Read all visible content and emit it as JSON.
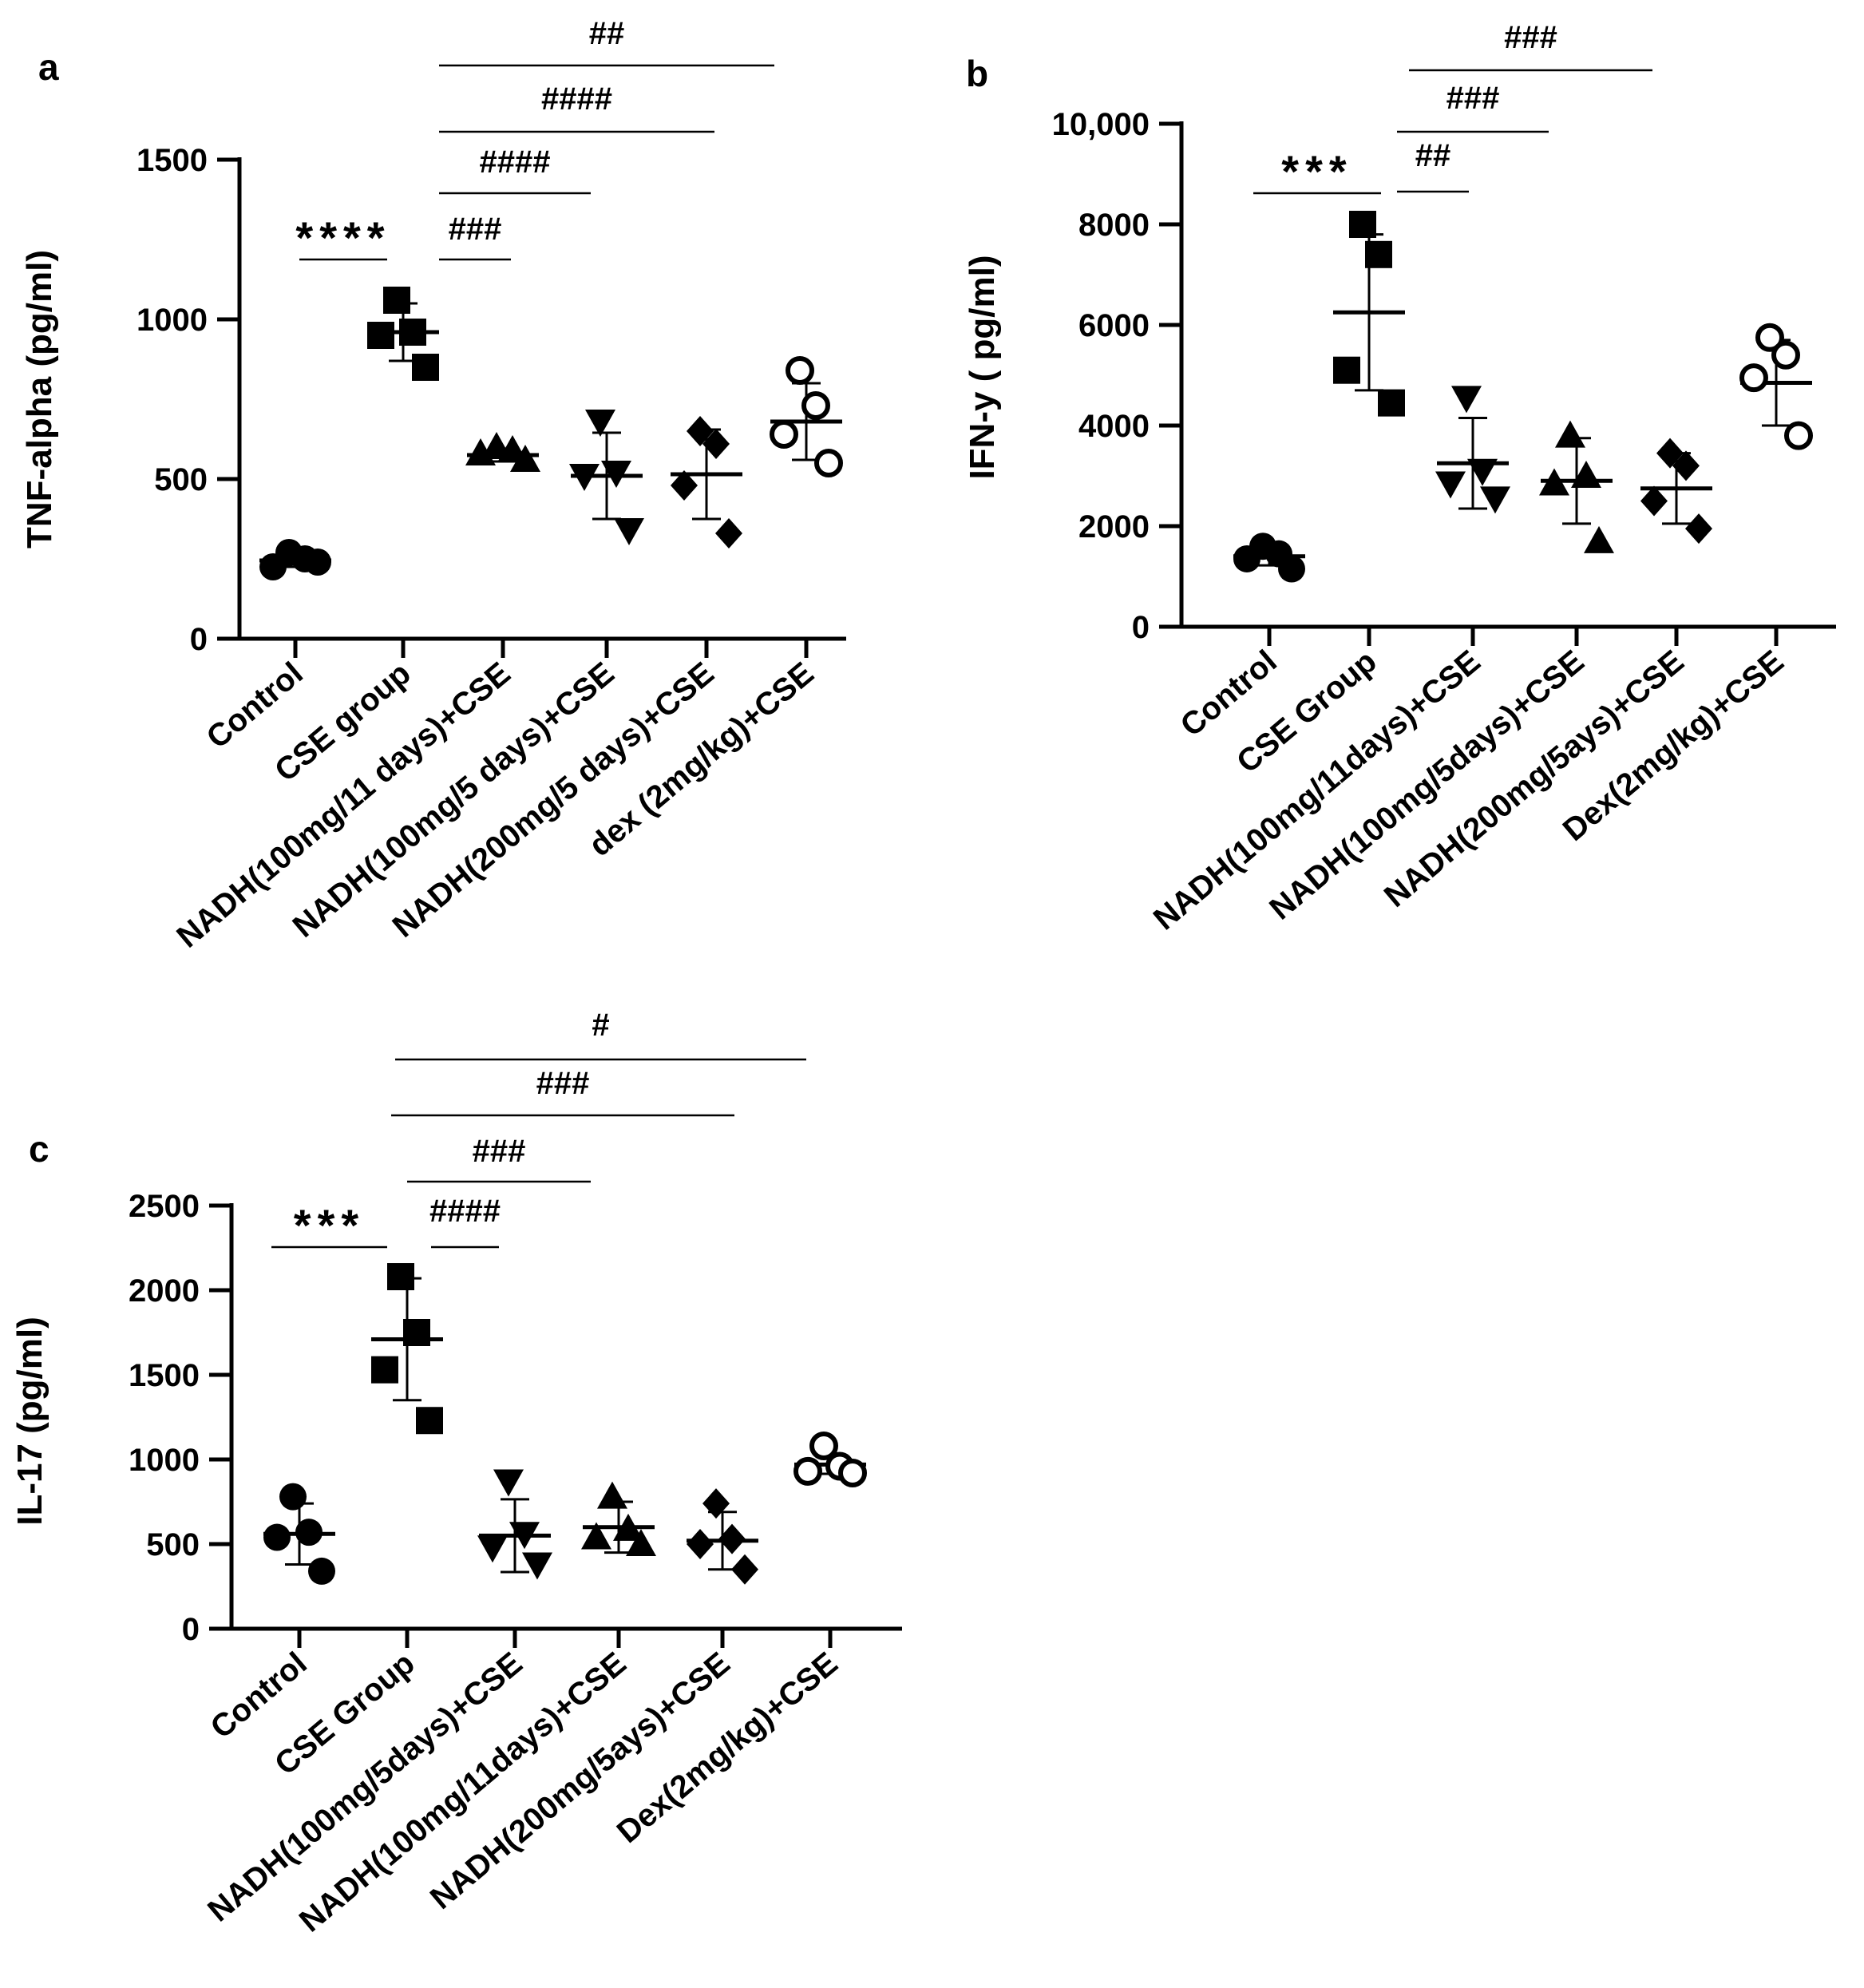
{
  "chart_data": [
    {
      "type": "scatter",
      "panel": "a",
      "ylabel": "TNF-alpha (pg/ml)",
      "ylim": [
        0,
        1500
      ],
      "yticks": [
        0,
        500,
        1000,
        1500
      ],
      "ytick_labels": [
        "0",
        "500",
        "1000",
        "1500"
      ],
      "categories": [
        "Control",
        "CSE group",
        "NADH(100mg/11 days)+CSE",
        "NADH(100mg/5 days)+CSE",
        "NADH(200mg/5 days)+CSE",
        "dex (2mg/kg)+CSE"
      ],
      "series": [
        {
          "name": "Control",
          "marker": "circle",
          "values": [
            270,
            250,
            225,
            240
          ],
          "mean": 245,
          "sd": 20
        },
        {
          "name": "CSE group",
          "marker": "square",
          "values": [
            1060,
            960,
            950,
            850
          ],
          "mean": 960,
          "sd": 90
        },
        {
          "name": "NADH(100mg/11 days)+CSE",
          "marker": "triangle-up",
          "values": [
            600,
            590,
            580,
            560
          ],
          "mean": 575,
          "sd": 20
        },
        {
          "name": "NADH(100mg/5 days)+CSE",
          "marker": "triangle-down",
          "values": [
            680,
            520,
            510,
            340
          ],
          "mean": 510,
          "sd": 135
        },
        {
          "name": "NADH(200mg/5 days)+CSE",
          "marker": "diamond",
          "values": [
            650,
            610,
            480,
            330
          ],
          "mean": 515,
          "sd": 140
        },
        {
          "name": "dex (2mg/kg)+CSE",
          "marker": "circle-open",
          "values": [
            840,
            730,
            640,
            550
          ],
          "mean": 680,
          "sd": 120
        }
      ],
      "comparisons": [
        {
          "from": 0,
          "to": 1,
          "label": "****"
        },
        {
          "from": 1,
          "to": 2,
          "label": "###"
        },
        {
          "from": 1,
          "to": 3,
          "label": "####"
        },
        {
          "from": 1,
          "to": 4,
          "label": "####"
        },
        {
          "from": 1,
          "to": 5,
          "label": "##"
        }
      ]
    },
    {
      "type": "scatter",
      "panel": "b",
      "ylabel": "IFN-y ( pg/ml)",
      "ylim": [
        0,
        10000
      ],
      "yticks": [
        0,
        2000,
        4000,
        6000,
        8000,
        10000
      ],
      "ytick_labels": [
        "0",
        "2000",
        "4000",
        "6000",
        "8000",
        "10,000"
      ],
      "categories": [
        "Control",
        "CSE Group",
        "NADH(100mg/11days)+CSE",
        "NADH(100mg/5days)+CSE",
        "NADH(200mg/5ays)+CSE",
        "Dex(2mg/kg)+CSE"
      ],
      "series": [
        {
          "name": "Control",
          "marker": "circle",
          "values": [
            1600,
            1450,
            1350,
            1150
          ],
          "mean": 1400,
          "sd": 180
        },
        {
          "name": "CSE Group",
          "marker": "square",
          "values": [
            8000,
            7400,
            5100,
            4450
          ],
          "mean": 6250,
          "sd": 1550
        },
        {
          "name": "NADH(100mg/11days)+CSE",
          "marker": "triangle-down",
          "values": [
            4550,
            3100,
            2850,
            2550
          ],
          "mean": 3250,
          "sd": 900
        },
        {
          "name": "NADH(100mg/5days)+CSE",
          "marker": "triangle-up",
          "values": [
            3800,
            3000,
            2850,
            1700
          ],
          "mean": 2900,
          "sd": 850
        },
        {
          "name": "NADH(200mg/5ays)+CSE",
          "marker": "diamond",
          "values": [
            3450,
            3200,
            2500,
            1950
          ],
          "mean": 2750,
          "sd": 700
        },
        {
          "name": "Dex(2mg/kg)+CSE",
          "marker": "circle-open",
          "values": [
            5750,
            5400,
            4950,
            3800
          ],
          "mean": 4850,
          "sd": 850
        }
      ],
      "comparisons": [
        {
          "from": 0,
          "to": 1,
          "label": "***"
        },
        {
          "from": 1,
          "to": 2,
          "label": "##"
        },
        {
          "from": 1,
          "to": 3,
          "label": "###"
        },
        {
          "from": 1,
          "to": 4,
          "label": "###"
        }
      ]
    },
    {
      "type": "scatter",
      "panel": "c",
      "ylabel": "IL-17 (pg/ml)",
      "ylim": [
        0,
        2500
      ],
      "yticks": [
        0,
        500,
        1000,
        1500,
        2000,
        2500
      ],
      "ytick_labels": [
        "0",
        "500",
        "1000",
        "1500",
        "2000",
        "2500"
      ],
      "categories": [
        "Control",
        "CSE Group",
        "NADH(100mg/5days)+CSE",
        "NADH(100mg/11days)+CSE",
        "NADH(200mg/5ays)+CSE",
        "Dex(2mg/kg)+CSE"
      ],
      "series": [
        {
          "name": "Control",
          "marker": "circle",
          "values": [
            780,
            570,
            540,
            340
          ],
          "mean": 560,
          "sd": 180
        },
        {
          "name": "CSE Group",
          "marker": "square",
          "values": [
            2080,
            1750,
            1530,
            1230
          ],
          "mean": 1710,
          "sd": 360
        },
        {
          "name": "NADH(100mg/5days)+CSE",
          "marker": "triangle-down",
          "values": [
            870,
            560,
            480,
            380
          ],
          "mean": 550,
          "sd": 215
        },
        {
          "name": "NADH(100mg/11days)+CSE",
          "marker": "triangle-up",
          "values": [
            780,
            590,
            540,
            500
          ],
          "mean": 600,
          "sd": 150
        },
        {
          "name": "NADH(200mg/5ays)+CSE",
          "marker": "diamond",
          "values": [
            740,
            530,
            500,
            350
          ],
          "mean": 520,
          "sd": 170
        },
        {
          "name": "Dex(2mg/kg)+CSE",
          "marker": "circle-open",
          "values": [
            1080,
            960,
            930,
            920
          ],
          "mean": 970,
          "sd": 55
        }
      ],
      "comparisons": [
        {
          "from": 0,
          "to": 1,
          "label": "***"
        },
        {
          "from": 1,
          "to": 2,
          "label": "####"
        },
        {
          "from": 1,
          "to": 3,
          "label": "###"
        },
        {
          "from": 1,
          "to": 4,
          "label": "###"
        },
        {
          "from": 1,
          "to": 5,
          "label": "#"
        }
      ]
    }
  ]
}
